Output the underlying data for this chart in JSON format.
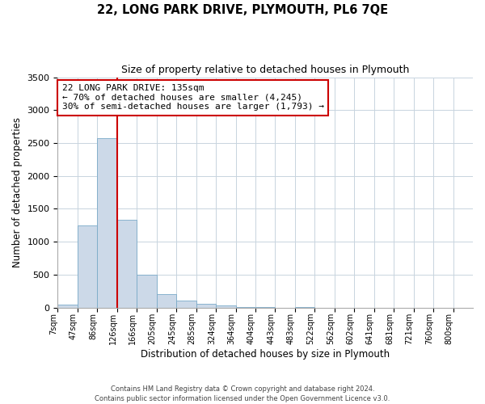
{
  "title": "22, LONG PARK DRIVE, PLYMOUTH, PL6 7QE",
  "subtitle": "Size of property relative to detached houses in Plymouth",
  "xlabel": "Distribution of detached houses by size in Plymouth",
  "ylabel": "Number of detached properties",
  "bar_color": "#ccd9e8",
  "bar_edge_color": "#7aaac8",
  "bin_labels": [
    "7sqm",
    "47sqm",
    "86sqm",
    "126sqm",
    "166sqm",
    "205sqm",
    "245sqm",
    "285sqm",
    "324sqm",
    "364sqm",
    "404sqm",
    "443sqm",
    "483sqm",
    "522sqm",
    "562sqm",
    "602sqm",
    "641sqm",
    "681sqm",
    "721sqm",
    "760sqm",
    "800sqm"
  ],
  "bar_heights": [
    50,
    1250,
    2580,
    1340,
    500,
    200,
    110,
    55,
    30,
    5,
    5,
    0,
    5,
    0,
    0,
    0,
    0,
    0,
    0,
    0,
    0
  ],
  "ylim": [
    0,
    3500
  ],
  "yticks": [
    0,
    500,
    1000,
    1500,
    2000,
    2500,
    3000,
    3500
  ],
  "annotation_line1": "22 LONG PARK DRIVE: 135sqm",
  "annotation_line2": "← 70% of detached houses are smaller (4,245)",
  "annotation_line3": "30% of semi-detached houses are larger (1,793) →",
  "line_color": "#cc0000",
  "annotation_box_facecolor": "#ffffff",
  "annotation_box_edgecolor": "#cc0000",
  "footer1": "Contains HM Land Registry data © Crown copyright and database right 2024.",
  "footer2": "Contains public sector information licensed under the Open Government Licence v3.0.",
  "background_color": "#ffffff",
  "grid_color": "#c8d4de"
}
